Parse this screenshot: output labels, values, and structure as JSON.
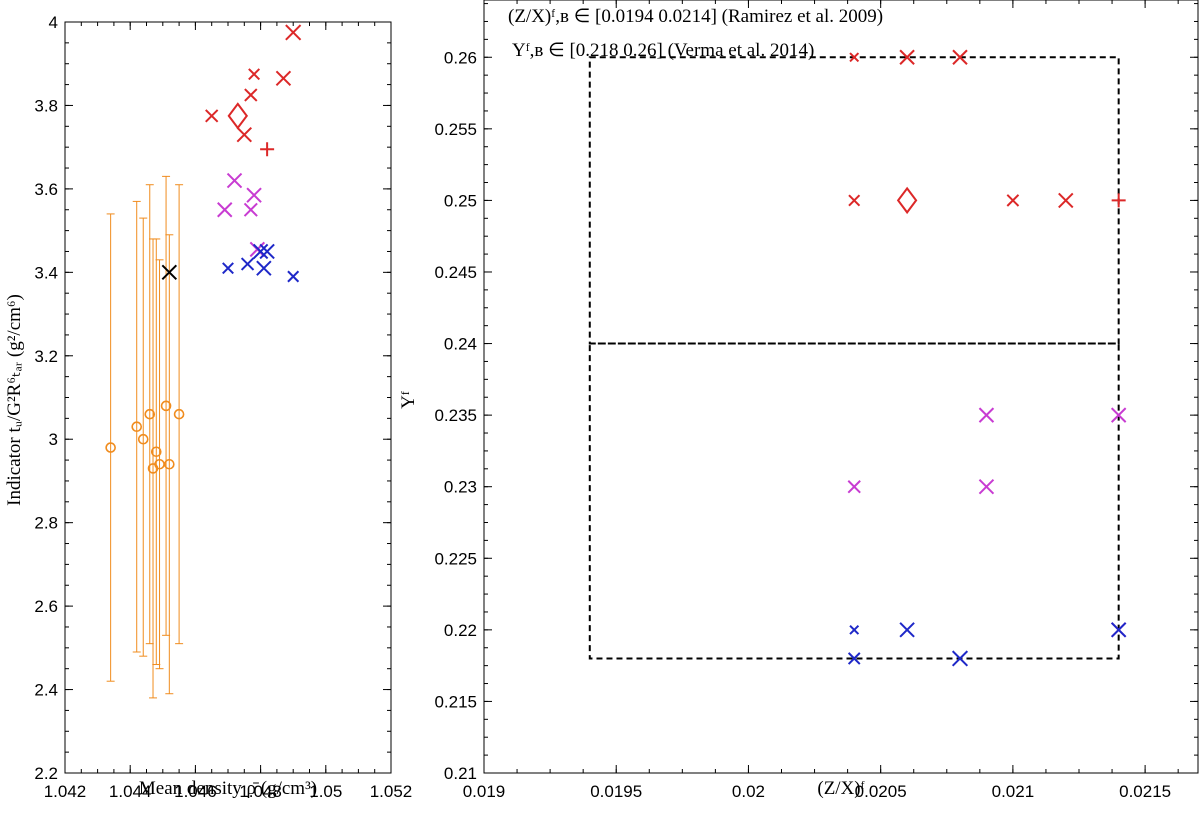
{
  "chart_data": [
    {
      "type": "scatter",
      "name": "left-panel",
      "xlabel": "Mean density ρ̄ (g/cm³)",
      "ylabel": "Indicator tᵤ/G²R⁶ₜₐᵣ (g²/cm⁶)",
      "xlim": [
        1.042,
        1.052
      ],
      "ylim": [
        2.2,
        4.0
      ],
      "xticks": [
        1.042,
        1.044,
        1.046,
        1.048,
        1.05,
        1.052
      ],
      "xtick_labels": [
        "1.042",
        "1.044",
        "1.046",
        "1.048",
        "1.05",
        "1.052"
      ],
      "yticks": [
        2.2,
        2.4,
        2.6,
        2.8,
        3.0,
        3.2,
        3.4,
        3.6,
        3.8,
        4.0
      ],
      "ytick_labels": [
        "2.2",
        "2.4",
        "2.6",
        "2.8",
        "3",
        "3.2",
        "3.4",
        "3.6",
        "3.8",
        "4"
      ],
      "series": [
        {
          "name": "observations-with-errors",
          "color": "#f08c1e",
          "marker": "circle",
          "points": [
            {
              "x": 1.0434,
              "y": 2.98,
              "lo": 2.42,
              "hi": 3.54
            },
            {
              "x": 1.0442,
              "y": 3.03,
              "lo": 2.49,
              "hi": 3.57
            },
            {
              "x": 1.0444,
              "y": 3.0,
              "lo": 2.48,
              "hi": 3.53
            },
            {
              "x": 1.0446,
              "y": 3.06,
              "lo": 2.51,
              "hi": 3.61
            },
            {
              "x": 1.0447,
              "y": 2.93,
              "lo": 2.38,
              "hi": 3.48
            },
            {
              "x": 1.0448,
              "y": 2.97,
              "lo": 2.46,
              "hi": 3.48
            },
            {
              "x": 1.0449,
              "y": 2.94,
              "lo": 2.45,
              "hi": 3.43
            },
            {
              "x": 1.0451,
              "y": 3.08,
              "lo": 2.53,
              "hi": 3.63
            },
            {
              "x": 1.0452,
              "y": 2.94,
              "lo": 2.39,
              "hi": 3.49
            },
            {
              "x": 1.0455,
              "y": 3.06,
              "lo": 2.51,
              "hi": 3.61
            }
          ]
        },
        {
          "name": "reference",
          "color": "#000000",
          "marker": "x",
          "points": [
            {
              "x": 1.0452,
              "y": 3.4,
              "s": 1.0
            }
          ]
        },
        {
          "name": "red-models",
          "color": "#dc2828",
          "marker": "x",
          "points": [
            {
              "x": 1.0465,
              "y": 3.775,
              "s": 0.85
            },
            {
              "x": 1.0475,
              "y": 3.73,
              "s": 1.0
            },
            {
              "x": 1.0477,
              "y": 3.825,
              "s": 0.85
            },
            {
              "x": 1.0478,
              "y": 3.875,
              "s": 0.75
            },
            {
              "x": 1.0487,
              "y": 3.865,
              "s": 1.0
            },
            {
              "x": 1.049,
              "y": 3.975,
              "s": 1.05
            }
          ]
        },
        {
          "name": "red-diamond",
          "color": "#dc2828",
          "marker": "diamond",
          "points": [
            {
              "x": 1.0473,
              "y": 3.775
            }
          ]
        },
        {
          "name": "red-plus",
          "color": "#dc2828",
          "marker": "plus",
          "points": [
            {
              "x": 1.0482,
              "y": 3.695
            }
          ]
        },
        {
          "name": "magenta-models",
          "color": "#c83cd2",
          "marker": "x",
          "points": [
            {
              "x": 1.0469,
              "y": 3.55,
              "s": 1.0
            },
            {
              "x": 1.0472,
              "y": 3.62,
              "s": 1.0
            },
            {
              "x": 1.0477,
              "y": 3.55,
              "s": 0.9
            },
            {
              "x": 1.0478,
              "y": 3.585,
              "s": 1.0
            },
            {
              "x": 1.0479,
              "y": 3.455,
              "s": 1.0
            }
          ]
        },
        {
          "name": "blue-models",
          "color": "#1e28c8",
          "marker": "x",
          "points": [
            {
              "x": 1.047,
              "y": 3.41,
              "s": 0.75
            },
            {
              "x": 1.0476,
              "y": 3.42,
              "s": 0.85
            },
            {
              "x": 1.048,
              "y": 3.45,
              "s": 1.0
            },
            {
              "x": 1.0481,
              "y": 3.41,
              "s": 1.0
            },
            {
              "x": 1.0482,
              "y": 3.45,
              "s": 1.0
            },
            {
              "x": 1.049,
              "y": 3.39,
              "s": 0.75
            }
          ]
        }
      ]
    },
    {
      "type": "scatter",
      "name": "right-panel",
      "xlabel": "(Z/X)ᶠ",
      "ylabel": "Yᶠ",
      "xlim": [
        0.019,
        0.0217
      ],
      "ylim": [
        0.21,
        0.264
      ],
      "xticks": [
        0.019,
        0.0195,
        0.02,
        0.0205,
        0.021,
        0.0215
      ],
      "xtick_labels": [
        "0.019",
        "0.0195",
        "0.02",
        "0.0205",
        "0.021",
        "0.0215"
      ],
      "yticks": [
        0.21,
        0.215,
        0.22,
        0.225,
        0.23,
        0.235,
        0.24,
        0.245,
        0.25,
        0.255,
        0.26
      ],
      "ytick_labels": [
        "0.21",
        "0.215",
        "0.22",
        "0.225",
        "0.23",
        "0.235",
        "0.24",
        "0.245",
        "0.25",
        "0.255",
        "0.26"
      ],
      "annotations": [
        "(Z/X)ᶠ,ʙ ∈ [0.0194 0.0214] (Ramirez et al. 2009)",
        "Yᶠ,ʙ ∈ [0.218 0.26] (Verma et al. 2014)"
      ],
      "boxes": [
        {
          "x0": 0.0194,
          "x1": 0.0214,
          "y0": 0.24,
          "y1": 0.26
        },
        {
          "x0": 0.0194,
          "x1": 0.0214,
          "y0": 0.218,
          "y1": 0.24
        }
      ],
      "series": [
        {
          "name": "red-models",
          "color": "#dc2828",
          "marker": "x",
          "points": [
            {
              "x": 0.0204,
              "y": 0.26,
              "s": 0.6
            },
            {
              "x": 0.0206,
              "y": 0.26,
              "s": 1.0
            },
            {
              "x": 0.0208,
              "y": 0.26,
              "s": 1.0
            },
            {
              "x": 0.0204,
              "y": 0.25,
              "s": 0.75
            },
            {
              "x": 0.021,
              "y": 0.25,
              "s": 0.8
            },
            {
              "x": 0.0212,
              "y": 0.25,
              "s": 1.0
            }
          ]
        },
        {
          "name": "red-diamond",
          "color": "#dc2828",
          "marker": "diamond",
          "points": [
            {
              "x": 0.0206,
              "y": 0.25
            }
          ]
        },
        {
          "name": "red-plus",
          "color": "#dc2828",
          "marker": "plus",
          "points": [
            {
              "x": 0.0214,
              "y": 0.25
            }
          ]
        },
        {
          "name": "magenta-models",
          "color": "#c83cd2",
          "marker": "x",
          "points": [
            {
              "x": 0.0204,
              "y": 0.23,
              "s": 0.85
            },
            {
              "x": 0.0209,
              "y": 0.235,
              "s": 1.0
            },
            {
              "x": 0.0209,
              "y": 0.23,
              "s": 1.0
            },
            {
              "x": 0.0214,
              "y": 0.235,
              "s": 1.0
            },
            {
              "x": 0.0214,
              "y": 0.22,
              "s": 1.0
            }
          ]
        },
        {
          "name": "blue-models",
          "color": "#1e28c8",
          "marker": "x",
          "points": [
            {
              "x": 0.0204,
              "y": 0.22,
              "s": 0.6
            },
            {
              "x": 0.0206,
              "y": 0.22,
              "s": 1.0
            },
            {
              "x": 0.0204,
              "y": 0.218,
              "s": 0.8
            },
            {
              "x": 0.0208,
              "y": 0.218,
              "s": 1.05
            },
            {
              "x": 0.0214,
              "y": 0.22,
              "s": 1.0
            }
          ]
        }
      ]
    }
  ]
}
